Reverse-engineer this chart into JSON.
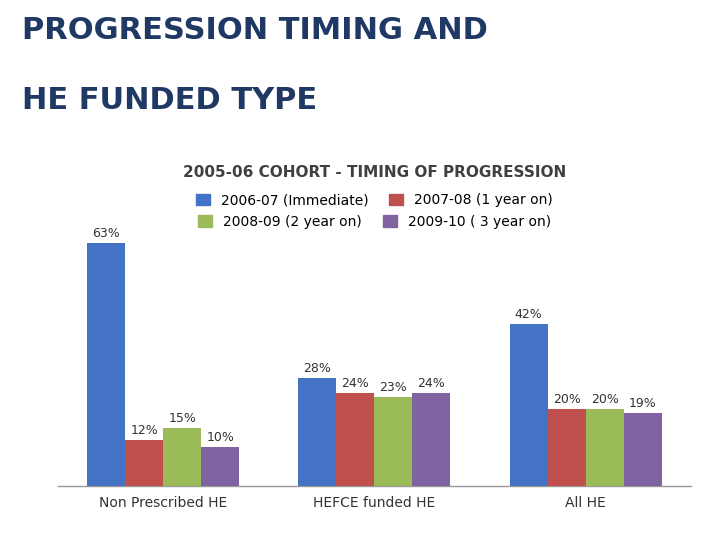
{
  "title_line1": "PROGRESSION TIMING AND",
  "title_line2": "HE FUNDED TYPE",
  "subtitle": "2005-06 COHORT - TIMING OF PROGRESSION",
  "categories": [
    "Non Prescribed HE",
    "HEFCE funded HE",
    "All HE"
  ],
  "series": {
    "2006-07 (Immediate)": [
      63,
      28,
      42
    ],
    "2007-08 (1 year on)": [
      12,
      24,
      20
    ],
    "2008-09 (2 year on)": [
      15,
      23,
      20
    ],
    "2009-10 ( 3 year on)": [
      10,
      24,
      19
    ]
  },
  "colors": {
    "2006-07 (Immediate)": "#4472C4",
    "2007-08 (1 year on)": "#C0504D",
    "2008-09 (2 year on)": "#9BBB59",
    "2009-10 ( 3 year on)": "#8064A2"
  },
  "background_color": "#FFFFFF",
  "title_color": "#1F3864",
  "subtitle_color": "#404040",
  "bar_width": 0.18,
  "ylim": [
    0,
    70
  ],
  "title_fontsize": 22,
  "subtitle_fontsize": 11,
  "legend_fontsize": 10,
  "label_fontsize": 9,
  "xtick_fontsize": 10
}
